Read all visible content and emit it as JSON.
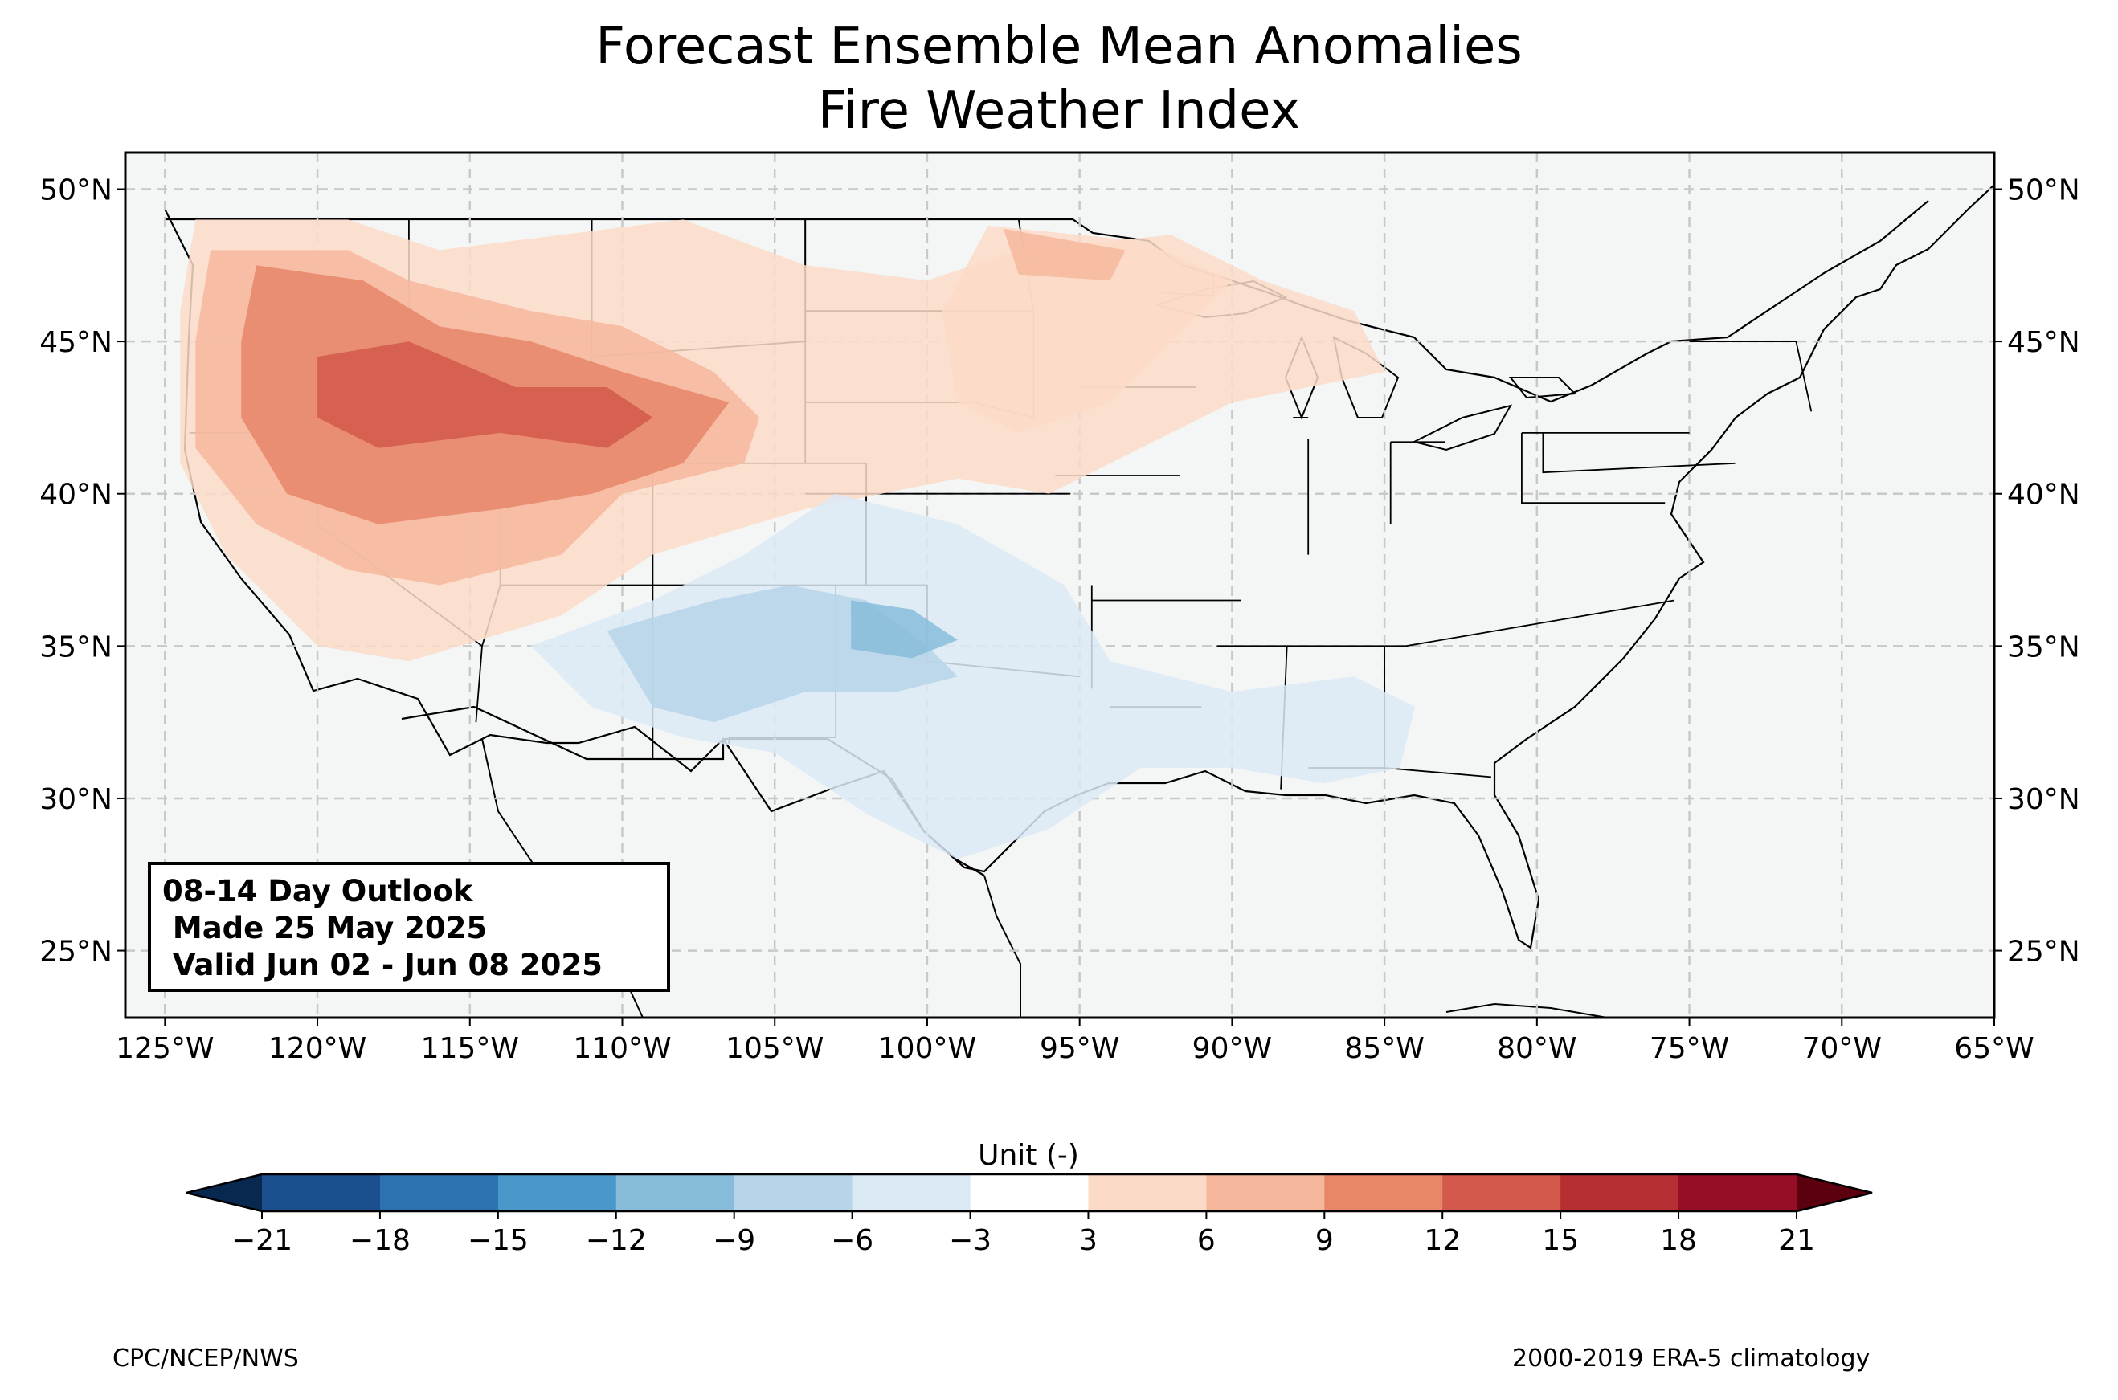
{
  "title": "Forecast Ensemble Mean Anomalies",
  "subtitle": "Fire Weather Index",
  "outlook": {
    "line1": "08-14 Day Outlook",
    "line2": " Made 25 May 2025",
    "line3": " Valid Jun 02 - Jun 08 2025"
  },
  "map": {
    "lon_range": [
      -126.3,
      -65
    ],
    "lat_range": [
      22.8,
      51.2
    ],
    "lon_ticks": [
      "125°W",
      "120°W",
      "115°W",
      "110°W",
      "105°W",
      "100°W",
      "95°W",
      "90°W",
      "85°W",
      "80°W",
      "75°W",
      "70°W",
      "65°W"
    ],
    "lat_ticks": [
      "25°N",
      "30°N",
      "35°N",
      "40°N",
      "45°N",
      "50°N"
    ],
    "gridlines": true,
    "background_color": "#f4f6f6"
  },
  "colorbar": {
    "label": "Unit (-)",
    "ticks": [
      "−21",
      "−18",
      "−15",
      "−12",
      "−9",
      "−6",
      "−3",
      "3",
      "6",
      "9",
      "12",
      "15",
      "18",
      "21"
    ],
    "colors": [
      "#1b4e8c",
      "#2c72b1",
      "#4a98c9",
      "#87bddb",
      "#b6d5e8",
      "#dbe9f4",
      "#ffffff",
      "#fbdbc8",
      "#f6b89d",
      "#e8866a",
      "#d2594b",
      "#b72f33",
      "#960d26"
    ],
    "under_color": "#08284f",
    "over_color": "#5c0010"
  },
  "credits": {
    "left": "CPC/NCEP/NWS",
    "right": "2000-2019 ERA-5 climatology"
  }
}
